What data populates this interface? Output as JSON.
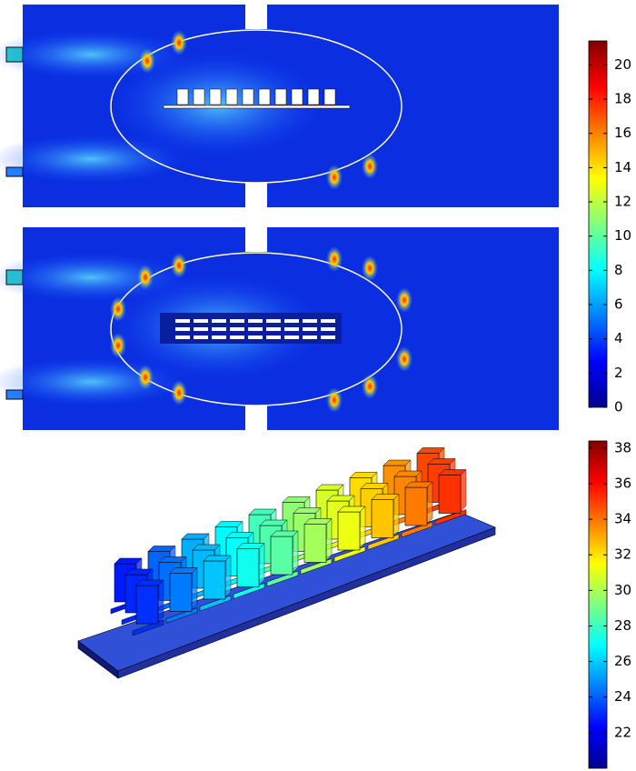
{
  "colorbars": [
    {
      "lim": [
        0,
        21.4
      ],
      "ticks": [
        0,
        2,
        4,
        6,
        8,
        10,
        12,
        14,
        16,
        18,
        20
      ]
    },
    {
      "lim": [
        20,
        38.4
      ],
      "ticks": [
        22,
        24,
        26,
        28,
        30,
        32,
        34,
        36,
        38
      ]
    }
  ]
}
